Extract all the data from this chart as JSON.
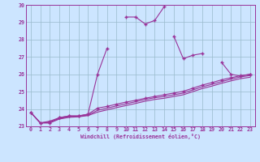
{
  "xlabel": "Windchill (Refroidissement éolien,°C)",
  "background_color": "#cce5ff",
  "grid_color": "#99bbcc",
  "line_color": "#993399",
  "xlim": [
    -0.5,
    23.5
  ],
  "ylim": [
    23,
    30
  ],
  "yticks": [
    23,
    24,
    25,
    26,
    27,
    28,
    29,
    30
  ],
  "xticks": [
    0,
    1,
    2,
    3,
    4,
    5,
    6,
    7,
    8,
    9,
    10,
    11,
    12,
    13,
    14,
    15,
    16,
    17,
    18,
    19,
    20,
    21,
    22,
    23
  ],
  "series1_x": [
    0,
    1,
    2,
    3,
    4,
    5,
    6,
    7,
    8,
    10,
    11,
    12,
    13,
    14,
    15,
    16,
    17,
    18,
    20,
    21,
    22,
    23
  ],
  "series1_y": [
    23.8,
    23.2,
    23.2,
    23.5,
    23.6,
    23.6,
    23.7,
    26.0,
    27.5,
    29.3,
    29.3,
    28.9,
    29.1,
    29.9,
    28.2,
    26.9,
    27.1,
    27.2,
    26.7,
    26.0,
    25.9,
    26.0
  ],
  "series1_gaps": [
    [
      8,
      10
    ],
    [
      14,
      15
    ],
    [
      18,
      20
    ]
  ],
  "series2_x": [
    0,
    1,
    2,
    3,
    4,
    5,
    6,
    7,
    8,
    9,
    10,
    11,
    12,
    13,
    14,
    15,
    16,
    17,
    18,
    19,
    20,
    21,
    22,
    23
  ],
  "series2_y": [
    23.8,
    23.2,
    23.3,
    23.5,
    23.6,
    23.6,
    23.7,
    24.05,
    24.15,
    24.28,
    24.4,
    24.5,
    24.62,
    24.72,
    24.82,
    24.92,
    25.02,
    25.2,
    25.38,
    25.52,
    25.68,
    25.8,
    25.92,
    26.0
  ],
  "series3_x": [
    0,
    1,
    2,
    3,
    4,
    5,
    6,
    7,
    8,
    9,
    10,
    11,
    12,
    13,
    14,
    15,
    16,
    17,
    18,
    19,
    20,
    21,
    22,
    23
  ],
  "series3_y": [
    23.8,
    23.2,
    23.25,
    23.45,
    23.55,
    23.58,
    23.65,
    23.92,
    24.05,
    24.18,
    24.3,
    24.42,
    24.55,
    24.65,
    24.72,
    24.82,
    24.92,
    25.1,
    25.28,
    25.42,
    25.58,
    25.72,
    25.85,
    25.93
  ],
  "series4_x": [
    0,
    1,
    2,
    3,
    4,
    5,
    6,
    7,
    8,
    9,
    10,
    11,
    12,
    13,
    14,
    15,
    16,
    17,
    18,
    19,
    20,
    21,
    22,
    23
  ],
  "series4_y": [
    23.8,
    23.2,
    23.2,
    23.42,
    23.52,
    23.55,
    23.62,
    23.82,
    23.95,
    24.08,
    24.2,
    24.32,
    24.45,
    24.55,
    24.62,
    24.72,
    24.82,
    25.0,
    25.18,
    25.32,
    25.48,
    25.62,
    25.75,
    25.83
  ]
}
